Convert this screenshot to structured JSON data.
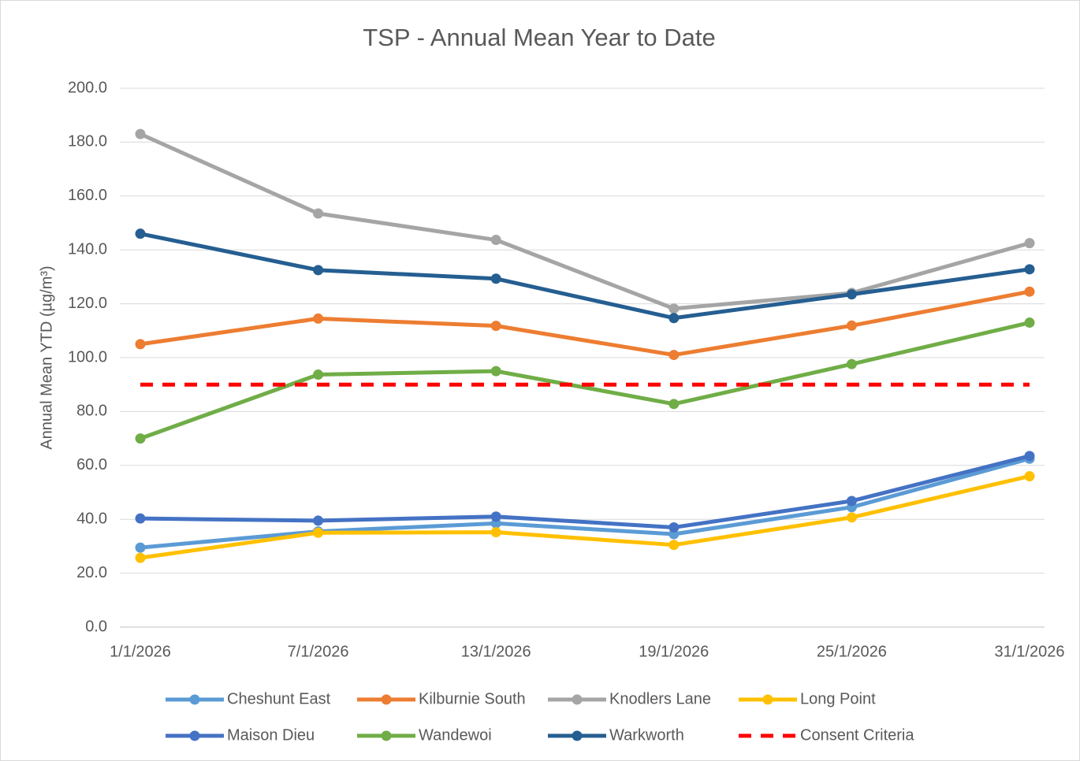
{
  "chart_data": {
    "type": "line",
    "title": "TSP - Annual Mean Year to Date",
    "y_label": "Annual Mean YTD (µg/m³)",
    "categories": [
      "1/1/2026",
      "7/1/2026",
      "13/1/2026",
      "19/1/2026",
      "25/1/2026",
      "31/1/2026"
    ],
    "ylim": [
      0,
      200
    ],
    "yticks": [
      {
        "value": 0,
        "label": "0.0"
      },
      {
        "value": 20,
        "label": "20.0"
      },
      {
        "value": 40,
        "label": "40.0"
      },
      {
        "value": 60,
        "label": "60.0"
      },
      {
        "value": 80,
        "label": "80.0"
      },
      {
        "value": 100,
        "label": "100.0"
      },
      {
        "value": 120,
        "label": "120.0"
      },
      {
        "value": 140,
        "label": "140.0"
      },
      {
        "value": 160,
        "label": "160.0"
      },
      {
        "value": 180,
        "label": "180.0"
      },
      {
        "value": 200,
        "label": "200.0"
      }
    ],
    "grid": true,
    "legend": "bottom",
    "series": [
      {
        "name": "Cheshunt East",
        "color": "#5b9bd5",
        "values": [
          29.5,
          35.5,
          38.5,
          34.5,
          44.5,
          62.5
        ]
      },
      {
        "name": "Kilburnie South",
        "color": "#ed7d31",
        "values": [
          105,
          114.5,
          111.8,
          101,
          111.9,
          124.5
        ]
      },
      {
        "name": "Knodlers Lane",
        "color": "#a5a5a5",
        "values": [
          183,
          153.5,
          143.7,
          118.2,
          124,
          142.5
        ]
      },
      {
        "name": "Long Point",
        "color": "#ffc000",
        "values": [
          25.7,
          35,
          35.2,
          30.5,
          40.7,
          56
        ]
      },
      {
        "name": "Maison Dieu",
        "color": "#4472c4",
        "values": [
          40.3,
          39.5,
          41,
          37,
          46.8,
          63.5
        ]
      },
      {
        "name": "Wandewoi",
        "color": "#70ad47",
        "values": [
          70,
          93.7,
          95,
          82.8,
          97.6,
          113
        ]
      },
      {
        "name": "Warkworth",
        "color": "#255e91",
        "values": [
          146,
          132.5,
          129.3,
          114.7,
          123.5,
          132.8
        ]
      },
      {
        "name": "Consent Criteria",
        "color": "#ff0000",
        "dashed": true,
        "markers": false,
        "values": [
          90,
          90,
          90,
          90,
          90,
          90
        ]
      }
    ]
  }
}
